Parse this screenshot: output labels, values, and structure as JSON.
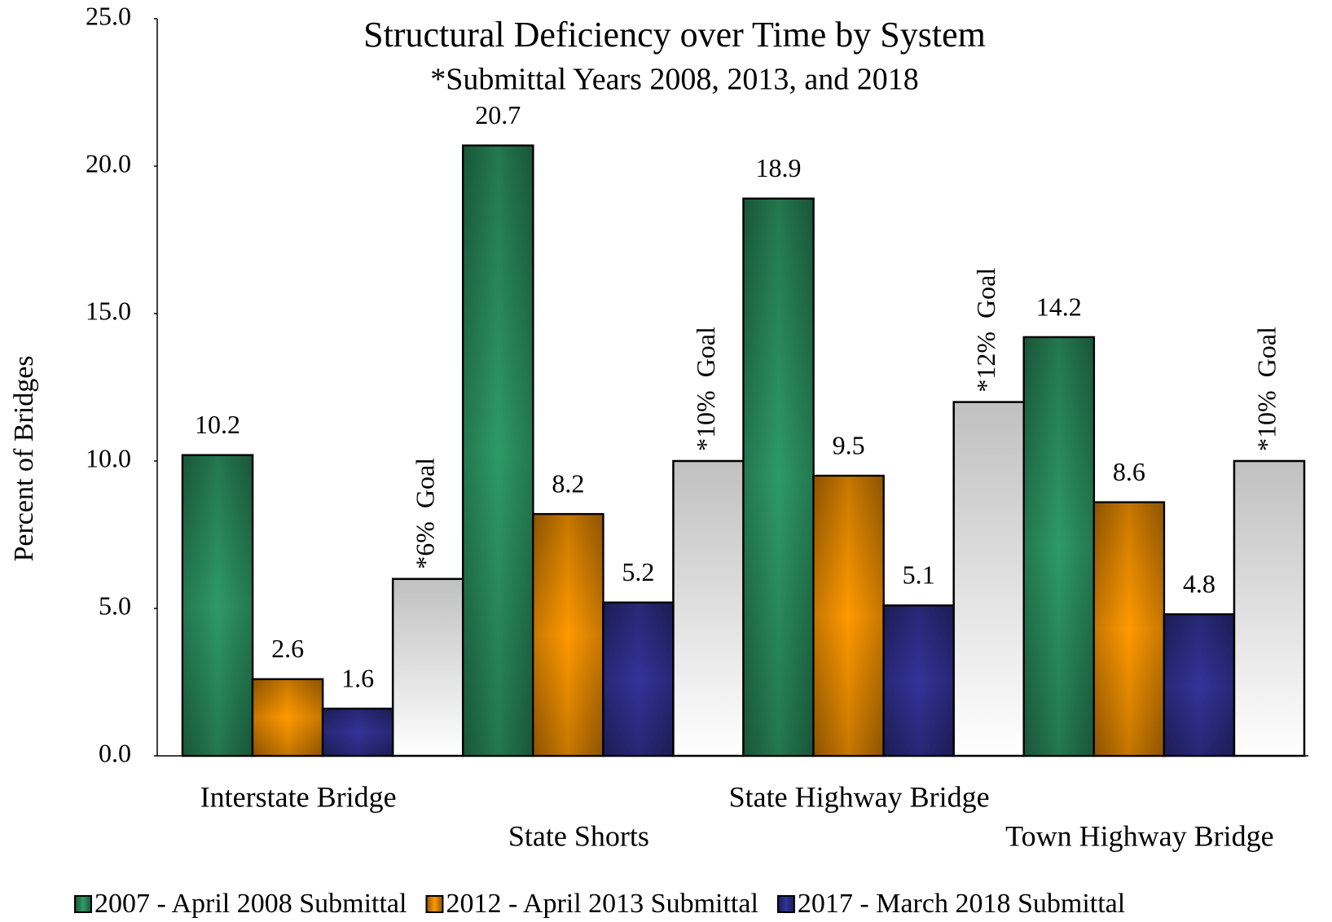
{
  "chart_data": {
    "type": "bar",
    "title": "Structural Deficiency over Time by System",
    "subtitle": "*Submittal Years 2008, 2013, and 2018",
    "y_label": "Percent of Bridges",
    "categories": [
      "Interstate Bridge",
      "State Shorts",
      "State Highway Bridge",
      "Town Highway Bridge"
    ],
    "series": [
      {
        "name": "2007 - April 2008 Submittal",
        "color": "#2e9a66",
        "values": [
          10.2,
          20.7,
          18.9,
          14.2
        ]
      },
      {
        "name": "2012 - April 2013 Submittal",
        "color": "#ff9900",
        "values": [
          2.6,
          8.2,
          9.5,
          8.6
        ]
      },
      {
        "name": "2017 - March 2018 Submittal",
        "color": "#333399",
        "values": [
          1.6,
          5.2,
          5.1,
          4.8
        ]
      }
    ],
    "goal": {
      "color": "#c0c0c0",
      "values": [
        6,
        10,
        12,
        10
      ],
      "value_labels": [
        "*6%  Goal",
        "*10%  Goal",
        "*12%  Goal",
        "*10%  Goal"
      ]
    },
    "ylim": [
      0,
      25
    ],
    "yticks": [
      {
        "value": 0,
        "label": "0.0"
      },
      {
        "value": 5,
        "label": "5.0"
      },
      {
        "value": 10,
        "label": "10.0"
      },
      {
        "value": 15,
        "label": "15.0"
      },
      {
        "value": 20,
        "label": "20.0"
      },
      {
        "value": 25,
        "label": "25.0"
      }
    ],
    "legend": "bottom"
  }
}
